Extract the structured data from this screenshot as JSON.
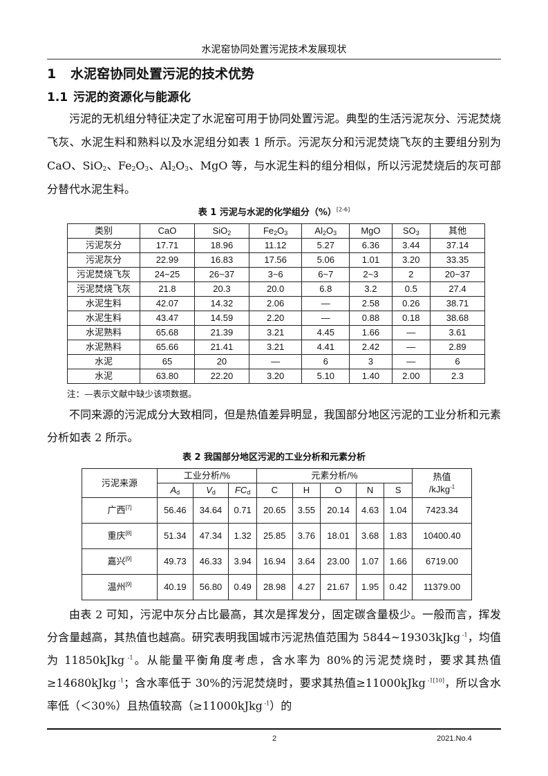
{
  "running_header": "水泥窑协同处置污泥技术发展现状",
  "section1": {
    "number": "1",
    "title": "水泥窑协同处置污泥的技术优势"
  },
  "section1_1": {
    "number": "1.1",
    "title": "污泥的资源化与能源化"
  },
  "paragraph1": [
    {
      "t": "污泥的无机组分特征决定了水泥窑可用于协同处置污泥。典型的生活污泥灰分、污泥焚烧飞灰、水泥生料和熟料以及水泥组分如表 1 所示。污泥灰分和污泥焚烧飞灰的主要组分别为 CaO、SiO"
    },
    {
      "sub": "2"
    },
    {
      "t": "、Fe"
    },
    {
      "sub": "2"
    },
    {
      "t": "O"
    },
    {
      "sub": "3"
    },
    {
      "t": "、Al"
    },
    {
      "sub": "2"
    },
    {
      "t": "O"
    },
    {
      "sub": "3"
    },
    {
      "t": "、MgO 等，与水泥生料的组分相似，所以污泥焚烧后的灰可部分替代水泥生料。"
    }
  ],
  "table1": {
    "caption": "表 1  污泥与水泥的化学组分（%）",
    "caption_ref": "[2-6]",
    "headers": [
      [
        {
          "t": "类别"
        }
      ],
      [
        {
          "t": "CaO"
        }
      ],
      [
        {
          "t": "SiO"
        },
        {
          "sub": "2"
        }
      ],
      [
        {
          "t": "Fe"
        },
        {
          "sub": "2"
        },
        {
          "t": "O"
        },
        {
          "sub": "3"
        }
      ],
      [
        {
          "t": "Al"
        },
        {
          "sub": "2"
        },
        {
          "t": "O"
        },
        {
          "sub": "3"
        }
      ],
      [
        {
          "t": "MgO"
        }
      ],
      [
        {
          "t": "SO"
        },
        {
          "sub": "3"
        }
      ],
      [
        {
          "t": "其他"
        }
      ]
    ],
    "rows": [
      [
        "污泥灰分",
        "17.71",
        "18.96",
        "11.12",
        "5.27",
        "6.36",
        "3.44",
        "37.14"
      ],
      [
        "污泥灰分",
        "22.99",
        "16.83",
        "17.56",
        "5.06",
        "1.01",
        "3.20",
        "33.35"
      ],
      [
        "污泥焚烧飞灰",
        "24~25",
        "26~37",
        "3~6",
        "6~7",
        "2~3",
        "2",
        "20~37"
      ],
      [
        "污泥焚烧飞灰",
        "21.8",
        "20.3",
        "20.0",
        "6.8",
        "3.2",
        "0.5",
        "27.4"
      ],
      [
        "水泥生料",
        "42.07",
        "14.32",
        "2.06",
        "—",
        "2.58",
        "0.26",
        "38.71"
      ],
      [
        "水泥生料",
        "43.47",
        "14.59",
        "2.20",
        "—",
        "0.88",
        "0.18",
        "38.68"
      ],
      [
        "水泥熟料",
        "65.68",
        "21.39",
        "3.21",
        "4.45",
        "1.66",
        "—",
        "3.61"
      ],
      [
        "水泥熟料",
        "65.66",
        "21.41",
        "3.21",
        "4.41",
        "2.42",
        "—",
        "2.89"
      ],
      [
        "水泥",
        "65",
        "20",
        "—",
        "6",
        "3",
        "—",
        "6"
      ],
      [
        "水泥",
        "63.80",
        "22.20",
        "3.20",
        "5.10",
        "1.40",
        "2.00",
        "2.3"
      ]
    ],
    "note": "注：—表示文献中缺少该项数据。"
  },
  "paragraph2": [
    {
      "t": "不同来源的污泥成分大致相同，但是热值差异明显，我国部分地区污泥的工业分析和元素分析如表 2 所示。"
    }
  ],
  "table2": {
    "caption": "表 2  我国部分地区污泥的工业分析和元素分析",
    "source_header": "污泥来源",
    "group1": "工业分析/%",
    "group2": "元素分析/%",
    "heat_header": "热值",
    "heat_unit": "/kJkg",
    "heat_unit_sup": "-1",
    "subheaders": [
      [
        {
          "i": "A"
        },
        {
          "sub": "d"
        }
      ],
      [
        {
          "i": "V"
        },
        {
          "sub": "d"
        }
      ],
      [
        {
          "i": "FC"
        },
        {
          "sub": "d"
        }
      ],
      [
        {
          "t": "C"
        }
      ],
      [
        {
          "t": "H"
        }
      ],
      [
        {
          "t": "O"
        }
      ],
      [
        {
          "t": "N"
        }
      ],
      [
        {
          "t": "S"
        }
      ]
    ],
    "rows": [
      {
        "source": "广西",
        "ref": "[7]",
        "values": [
          "56.46",
          "34.64",
          "0.71",
          "20.65",
          "3.55",
          "20.14",
          "4.63",
          "1.04",
          "7423.34"
        ]
      },
      {
        "source": "重庆",
        "ref": "[8]",
        "values": [
          "51.34",
          "47.34",
          "1.32",
          "25.85",
          "3.76",
          "18.01",
          "3.68",
          "1.83",
          "10400.40"
        ]
      },
      {
        "source": "嘉兴",
        "ref": "[9]",
        "values": [
          "49.73",
          "46.33",
          "3.94",
          "16.94",
          "3.64",
          "23.00",
          "1.07",
          "1.66",
          "6719.00"
        ]
      },
      {
        "source": "温州",
        "ref": "[9]",
        "values": [
          "40.19",
          "56.80",
          "0.49",
          "28.98",
          "4.27",
          "21.67",
          "1.95",
          "0.42",
          "11379.00"
        ]
      }
    ]
  },
  "paragraph3": [
    {
      "t": "由表 2 可知，污泥中灰分占比最高，其次是挥发分，固定碳含量极少。一般而言，挥发分含量越高，其热值也越高。研究表明我国城市污泥热值范围为 5844~19303kJkg"
    },
    {
      "sup": " -1"
    },
    {
      "t": "，均值为 11850kJkg"
    },
    {
      "sup": " -1"
    },
    {
      "t": "。从能量平衡角度考虑，含水率为 80%的污泥焚烧时，要求其热值≥14680kJkg"
    },
    {
      "sup": " -1"
    },
    {
      "t": "；含水率低于 30%的污泥焚烧时，要求其热值≥11000kJkg"
    },
    {
      "sup": " -1[10]"
    },
    {
      "t": "，所以含水率低（＜30%）且热值较高（≥11000kJkg"
    },
    {
      "sup": " -1"
    },
    {
      "t": "）的"
    }
  ],
  "footer": {
    "page": "2",
    "issue": "2021.No.4"
  }
}
